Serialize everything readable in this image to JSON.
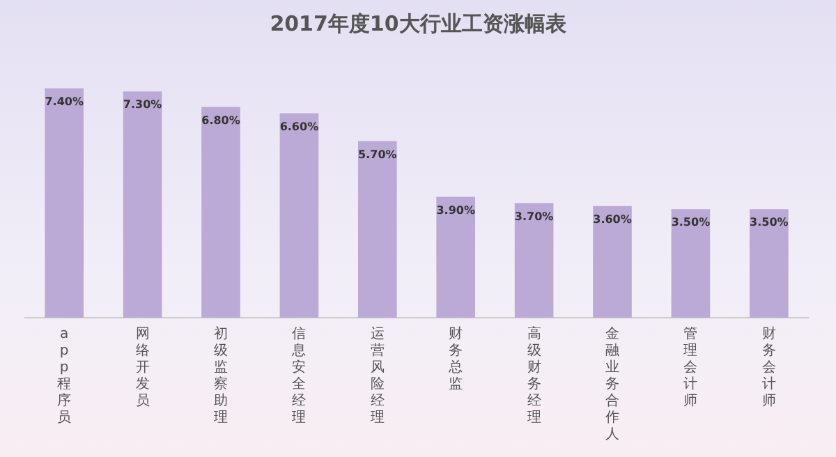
{
  "chart_data": {
    "type": "bar",
    "title": "2017年度10大行业工资涨幅表",
    "categories": [
      "app程序员",
      "网络开发员",
      "初级监察助理",
      "信息安全经理",
      "运营风险经理",
      "财务总监",
      "高级财务经理",
      "金融业务合作人",
      "管理会计师",
      "财务会计师"
    ],
    "values": [
      7.4,
      7.3,
      6.8,
      6.6,
      5.7,
      3.9,
      3.7,
      3.6,
      3.5,
      3.5
    ],
    "value_labels": [
      "7.40%",
      "7.30%",
      "6.80%",
      "6.60%",
      "5.70%",
      "3.90%",
      "3.70%",
      "3.60%",
      "3.50%",
      "3.50%"
    ],
    "color": "#bcaad6",
    "grid": false,
    "legend": false
  }
}
